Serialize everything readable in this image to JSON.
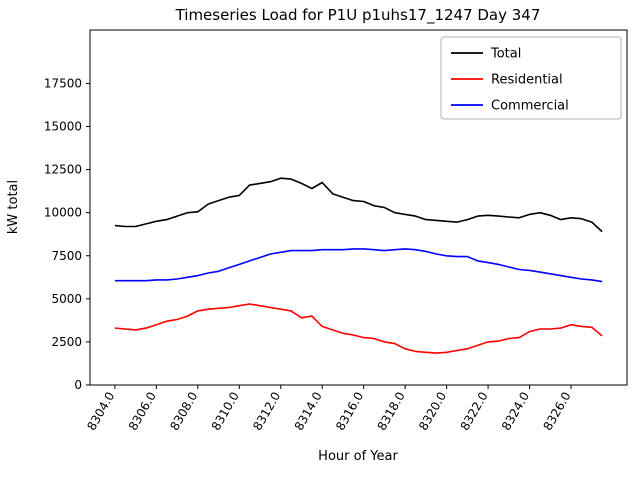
{
  "chart_data": {
    "type": "line",
    "title": "Timeseries Load for P1U p1uhs17_1247  Day 347",
    "xlabel": "Hour of Year",
    "ylabel": "kW total",
    "xlim": [
      8302.8,
      8328.7
    ],
    "ylim": [
      0,
      20600
    ],
    "grid": false,
    "legend_position": "upper right",
    "xticks": [
      8304,
      8306,
      8308,
      8310,
      8312,
      8314,
      8316,
      8318,
      8320,
      8322,
      8324,
      8326
    ],
    "xtick_labels": [
      "8304.0",
      "8306.0",
      "8308.0",
      "8310.0",
      "8312.0",
      "8314.0",
      "8316.0",
      "8318.0",
      "8320.0",
      "8322.0",
      "8324.0",
      "8326.0"
    ],
    "yticks": [
      0,
      2500,
      5000,
      7500,
      10000,
      12500,
      15000,
      17500
    ],
    "ytick_labels": [
      "0",
      "2500",
      "5000",
      "7500",
      "10000",
      "12500",
      "15000",
      "17500"
    ],
    "x": [
      8304.0,
      8304.5,
      8305.0,
      8305.5,
      8306.0,
      8306.5,
      8307.0,
      8307.5,
      8308.0,
      8308.5,
      8309.0,
      8309.5,
      8310.0,
      8310.5,
      8311.0,
      8311.5,
      8312.0,
      8312.5,
      8313.0,
      8313.5,
      8314.0,
      8314.5,
      8315.0,
      8315.5,
      8316.0,
      8316.5,
      8317.0,
      8317.5,
      8318.0,
      8318.5,
      8319.0,
      8319.5,
      8320.0,
      8320.5,
      8321.0,
      8321.5,
      8322.0,
      8322.5,
      8323.0,
      8323.5,
      8324.0,
      8324.5,
      8325.0,
      8325.5,
      8326.0,
      8326.5,
      8327.0,
      8327.5
    ],
    "series": [
      {
        "name": "Total",
        "color": "#000000",
        "values": [
          9250,
          9200,
          9200,
          9350,
          9500,
          9600,
          9800,
          10000,
          10050,
          10500,
          10700,
          10900,
          11000,
          11600,
          11700,
          11800,
          12000,
          11950,
          11700,
          11400,
          11750,
          11100,
          10900,
          10700,
          10650,
          10400,
          10300,
          10000,
          9900,
          9800,
          9600,
          9550,
          9500,
          9450,
          9600,
          9800,
          9850,
          9800,
          9750,
          9700,
          9900,
          10000,
          9850,
          9600,
          9700,
          9650,
          9450,
          8900
        ]
      },
      {
        "name": "Residential",
        "color": "#ff0000",
        "values": [
          3300,
          3250,
          3200,
          3300,
          3500,
          3700,
          3800,
          4000,
          4300,
          4400,
          4450,
          4500,
          4600,
          4700,
          4600,
          4500,
          4400,
          4300,
          3900,
          4000,
          3400,
          3200,
          3000,
          2900,
          2750,
          2700,
          2500,
          2400,
          2100,
          1950,
          1900,
          1850,
          1900,
          2000,
          2100,
          2300,
          2500,
          2550,
          2700,
          2750,
          3100,
          3250,
          3250,
          3300,
          3500,
          3400,
          3350,
          2850
        ]
      },
      {
        "name": "Commercial",
        "color": "#0000ff",
        "values": [
          6050,
          6050,
          6050,
          6050,
          6100,
          6100,
          6150,
          6250,
          6350,
          6500,
          6600,
          6800,
          7000,
          7200,
          7400,
          7600,
          7700,
          7800,
          7800,
          7800,
          7850,
          7850,
          7850,
          7900,
          7900,
          7850,
          7800,
          7850,
          7900,
          7850,
          7750,
          7600,
          7500,
          7450,
          7450,
          7200,
          7100,
          7000,
          6850,
          6700,
          6650,
          6550,
          6450,
          6350,
          6250,
          6150,
          6100,
          6000
        ]
      }
    ]
  }
}
